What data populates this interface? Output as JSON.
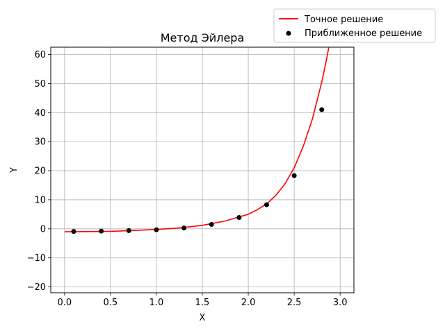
{
  "chart_data": {
    "type": "line",
    "title": "Метод Эйлера",
    "xlabel": "X",
    "ylabel": "Y",
    "xlim": [
      -0.15,
      3.15
    ],
    "ylim": [
      -22,
      62.5
    ],
    "xticks": [
      0.0,
      0.5,
      1.0,
      1.5,
      2.0,
      2.5,
      3.0
    ],
    "xtick_labels": [
      "0.0",
      "0.5",
      "1.0",
      "1.5",
      "2.0",
      "2.5",
      "3.0"
    ],
    "yticks": [
      -20,
      -10,
      0,
      10,
      20,
      30,
      40,
      50,
      60
    ],
    "ytick_labels": [
      "−20",
      "−10",
      "0",
      "10",
      "20",
      "30",
      "40",
      "50",
      "60"
    ],
    "grid": true,
    "legend_position": "top-right, outside plot",
    "series": [
      {
        "name": "Точное решение",
        "kind": "line",
        "color": "#ff0000",
        "x": [
          0.0,
          0.25,
          0.5,
          0.75,
          1.0,
          1.25,
          1.5,
          1.75,
          2.0,
          2.1,
          2.2,
          2.3,
          2.4,
          2.5,
          2.6,
          2.7,
          2.8,
          2.85,
          2.88
        ],
        "y": [
          -1.0,
          -0.95,
          -0.85,
          -0.6,
          -0.2,
          0.3,
          1.2,
          2.7,
          5.0,
          6.6,
          8.6,
          11.5,
          15.5,
          21.0,
          28.5,
          38.0,
          50.5,
          58.0,
          63.0
        ]
      },
      {
        "name": "Приближенное решение",
        "kind": "scatter",
        "color": "#000000",
        "x": [
          0.1,
          0.4,
          0.7,
          1.0,
          1.3,
          1.6,
          1.9,
          2.2,
          2.5,
          2.8
        ],
        "y": [
          -0.9,
          -0.8,
          -0.6,
          -0.3,
          0.3,
          1.5,
          3.9,
          8.3,
          18.3,
          41.0
        ]
      }
    ]
  }
}
